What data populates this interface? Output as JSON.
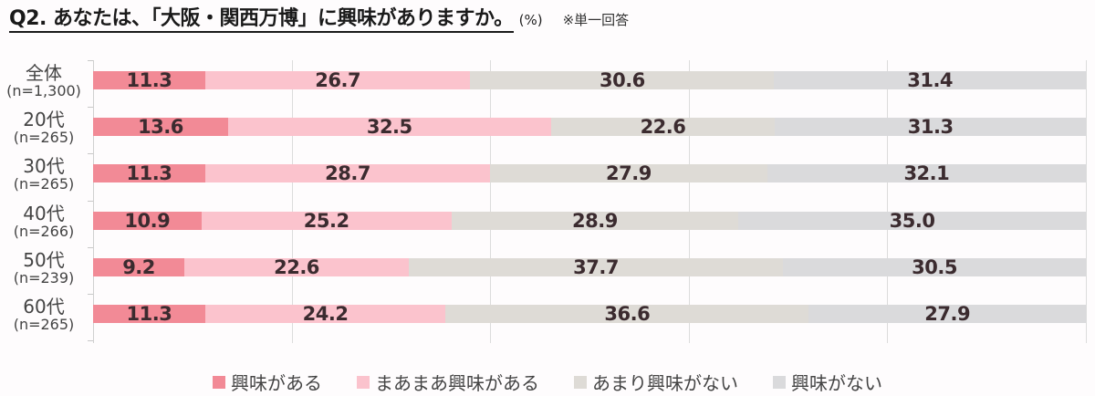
{
  "header": {
    "title": "Q2. あなたは、「大阪・関西万博」に興味がありますか。",
    "unit": "(%)",
    "note": "※単一回答"
  },
  "legend": [
    {
      "label": "興味がある",
      "color": "#f28a96"
    },
    {
      "label": "まあまあ興味がある",
      "color": "#fbc3cd"
    },
    {
      "label": "あまり興味がない",
      "color": "#dedbd6"
    },
    {
      "label": "興味がない",
      "color": "#dadadc"
    }
  ],
  "rows": [
    {
      "name": "全体",
      "n": "(n=1,300)",
      "values": [
        "11.3",
        "26.7",
        "30.6",
        "31.4"
      ]
    },
    {
      "name": "20代",
      "n": "(n=265)",
      "values": [
        "13.6",
        "32.5",
        "22.6",
        "31.3"
      ]
    },
    {
      "name": "30代",
      "n": "(n=265)",
      "values": [
        "11.3",
        "28.7",
        "27.9",
        "32.1"
      ]
    },
    {
      "name": "40代",
      "n": "(n=266)",
      "values": [
        "10.9",
        "25.2",
        "28.9",
        "35.0"
      ]
    },
    {
      "name": "50代",
      "n": "(n=239)",
      "values": [
        "9.2",
        "22.6",
        "37.7",
        "30.5"
      ]
    },
    {
      "name": "60代",
      "n": "(n=265)",
      "values": [
        "11.3",
        "24.2",
        "36.6",
        "27.9"
      ]
    }
  ],
  "chart_data": {
    "type": "bar",
    "orientation": "horizontal-stacked-100",
    "title": "Q2. あなたは、「大阪・関西万博」に興味がありますか。",
    "subtitle": "(%) ※単一回答",
    "categories": [
      "全体 (n=1,300)",
      "20代 (n=265)",
      "30代 (n=265)",
      "40代 (n=266)",
      "50代 (n=239)",
      "60代 (n=265)"
    ],
    "series": [
      {
        "name": "興味がある",
        "values": [
          11.3,
          13.6,
          11.3,
          10.9,
          9.2,
          11.3
        ]
      },
      {
        "name": "まあまあ興味がある",
        "values": [
          26.7,
          32.5,
          28.7,
          25.2,
          22.6,
          24.2
        ]
      },
      {
        "name": "あまり興味がない",
        "values": [
          30.6,
          22.6,
          27.9,
          28.9,
          37.7,
          36.6
        ]
      },
      {
        "name": "興味がない",
        "values": [
          31.4,
          31.3,
          32.1,
          35.0,
          30.5,
          27.9
        ]
      }
    ],
    "xlabel": "",
    "ylabel": "",
    "xlim": [
      0,
      100
    ],
    "grid": true,
    "legend_position": "bottom"
  }
}
